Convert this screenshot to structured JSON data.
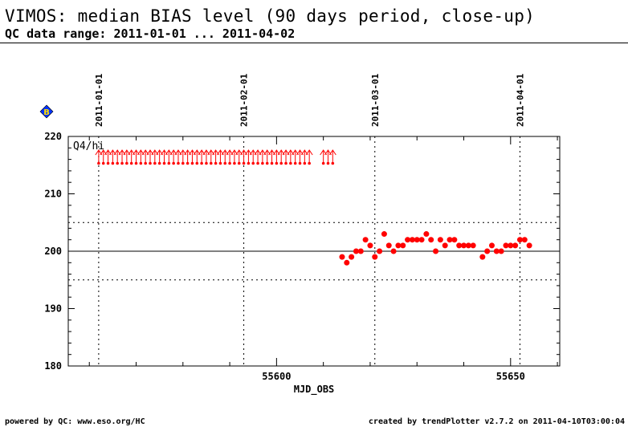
{
  "header": {
    "title": "VIMOS: median BIAS level (90 days period, close-up)",
    "subtitle": "QC data range: 2011-01-01 ... 2011-04-02"
  },
  "footer": {
    "left": "powered by QC: www.eso.org/HC",
    "right": "created by trendPlotter v2.7.2 on 2011-04-10T03:00:04"
  },
  "chart_data": {
    "type": "scatter",
    "xlabel": "MJD_OBS",
    "xlim": [
      55555.5,
      55660.5
    ],
    "ylim": [
      180,
      220
    ],
    "x_ticks": [
      55600,
      55650
    ],
    "y_ticks": [
      180,
      190,
      200,
      210,
      220
    ],
    "panel_label": "Q4/hi",
    "badge": "B",
    "reference_line": 200,
    "threshold_lines": [
      195,
      205
    ],
    "date_markers": [
      {
        "label": "2011-01-01",
        "mjd": 55562
      },
      {
        "label": "2011-02-01",
        "mjd": 55593
      },
      {
        "label": "2011-03-01",
        "mjd": 55621
      },
      {
        "label": "2011-04-01",
        "mjd": 55652
      }
    ],
    "outliers_above": [
      55562,
      55563,
      55564,
      55565,
      55566,
      55567,
      55568,
      55569,
      55570,
      55571,
      55572,
      55573,
      55574,
      55575,
      55576,
      55577,
      55578,
      55579,
      55580,
      55581,
      55582,
      55583,
      55584,
      55585,
      55586,
      55587,
      55588,
      55589,
      55590,
      55591,
      55592,
      55593,
      55594,
      55595,
      55596,
      55597,
      55598,
      55599,
      55600,
      55601,
      55602,
      55603,
      55604,
      55605,
      55606,
      55607,
      55610,
      55611,
      55612
    ],
    "points": [
      {
        "x": 55614,
        "y": 199
      },
      {
        "x": 55615,
        "y": 198
      },
      {
        "x": 55616,
        "y": 199
      },
      {
        "x": 55617,
        "y": 200
      },
      {
        "x": 55618,
        "y": 200
      },
      {
        "x": 55619,
        "y": 202
      },
      {
        "x": 55620,
        "y": 201
      },
      {
        "x": 55621,
        "y": 199
      },
      {
        "x": 55622,
        "y": 200
      },
      {
        "x": 55623,
        "y": 203
      },
      {
        "x": 55624,
        "y": 201
      },
      {
        "x": 55625,
        "y": 200
      },
      {
        "x": 55626,
        "y": 201
      },
      {
        "x": 55627,
        "y": 201
      },
      {
        "x": 55628,
        "y": 202
      },
      {
        "x": 55629,
        "y": 202
      },
      {
        "x": 55630,
        "y": 202
      },
      {
        "x": 55631,
        "y": 202
      },
      {
        "x": 55632,
        "y": 203
      },
      {
        "x": 55633,
        "y": 202
      },
      {
        "x": 55634,
        "y": 200
      },
      {
        "x": 55635,
        "y": 202
      },
      {
        "x": 55636,
        "y": 201
      },
      {
        "x": 55637,
        "y": 202
      },
      {
        "x": 55638,
        "y": 202
      },
      {
        "x": 55639,
        "y": 201
      },
      {
        "x": 55640,
        "y": 201
      },
      {
        "x": 55641,
        "y": 201
      },
      {
        "x": 55642,
        "y": 201
      },
      {
        "x": 55644,
        "y": 199
      },
      {
        "x": 55645,
        "y": 200
      },
      {
        "x": 55646,
        "y": 201
      },
      {
        "x": 55647,
        "y": 200
      },
      {
        "x": 55648,
        "y": 200
      },
      {
        "x": 55649,
        "y": 201
      },
      {
        "x": 55650,
        "y": 201
      },
      {
        "x": 55651,
        "y": 201
      },
      {
        "x": 55652,
        "y": 202
      },
      {
        "x": 55653,
        "y": 202
      },
      {
        "x": 55654,
        "y": 201
      }
    ],
    "colors": {
      "points": "#ff0000",
      "axes": "#000000",
      "badge_fill": "#0033ff",
      "badge_inner": "#ffdd00"
    }
  }
}
